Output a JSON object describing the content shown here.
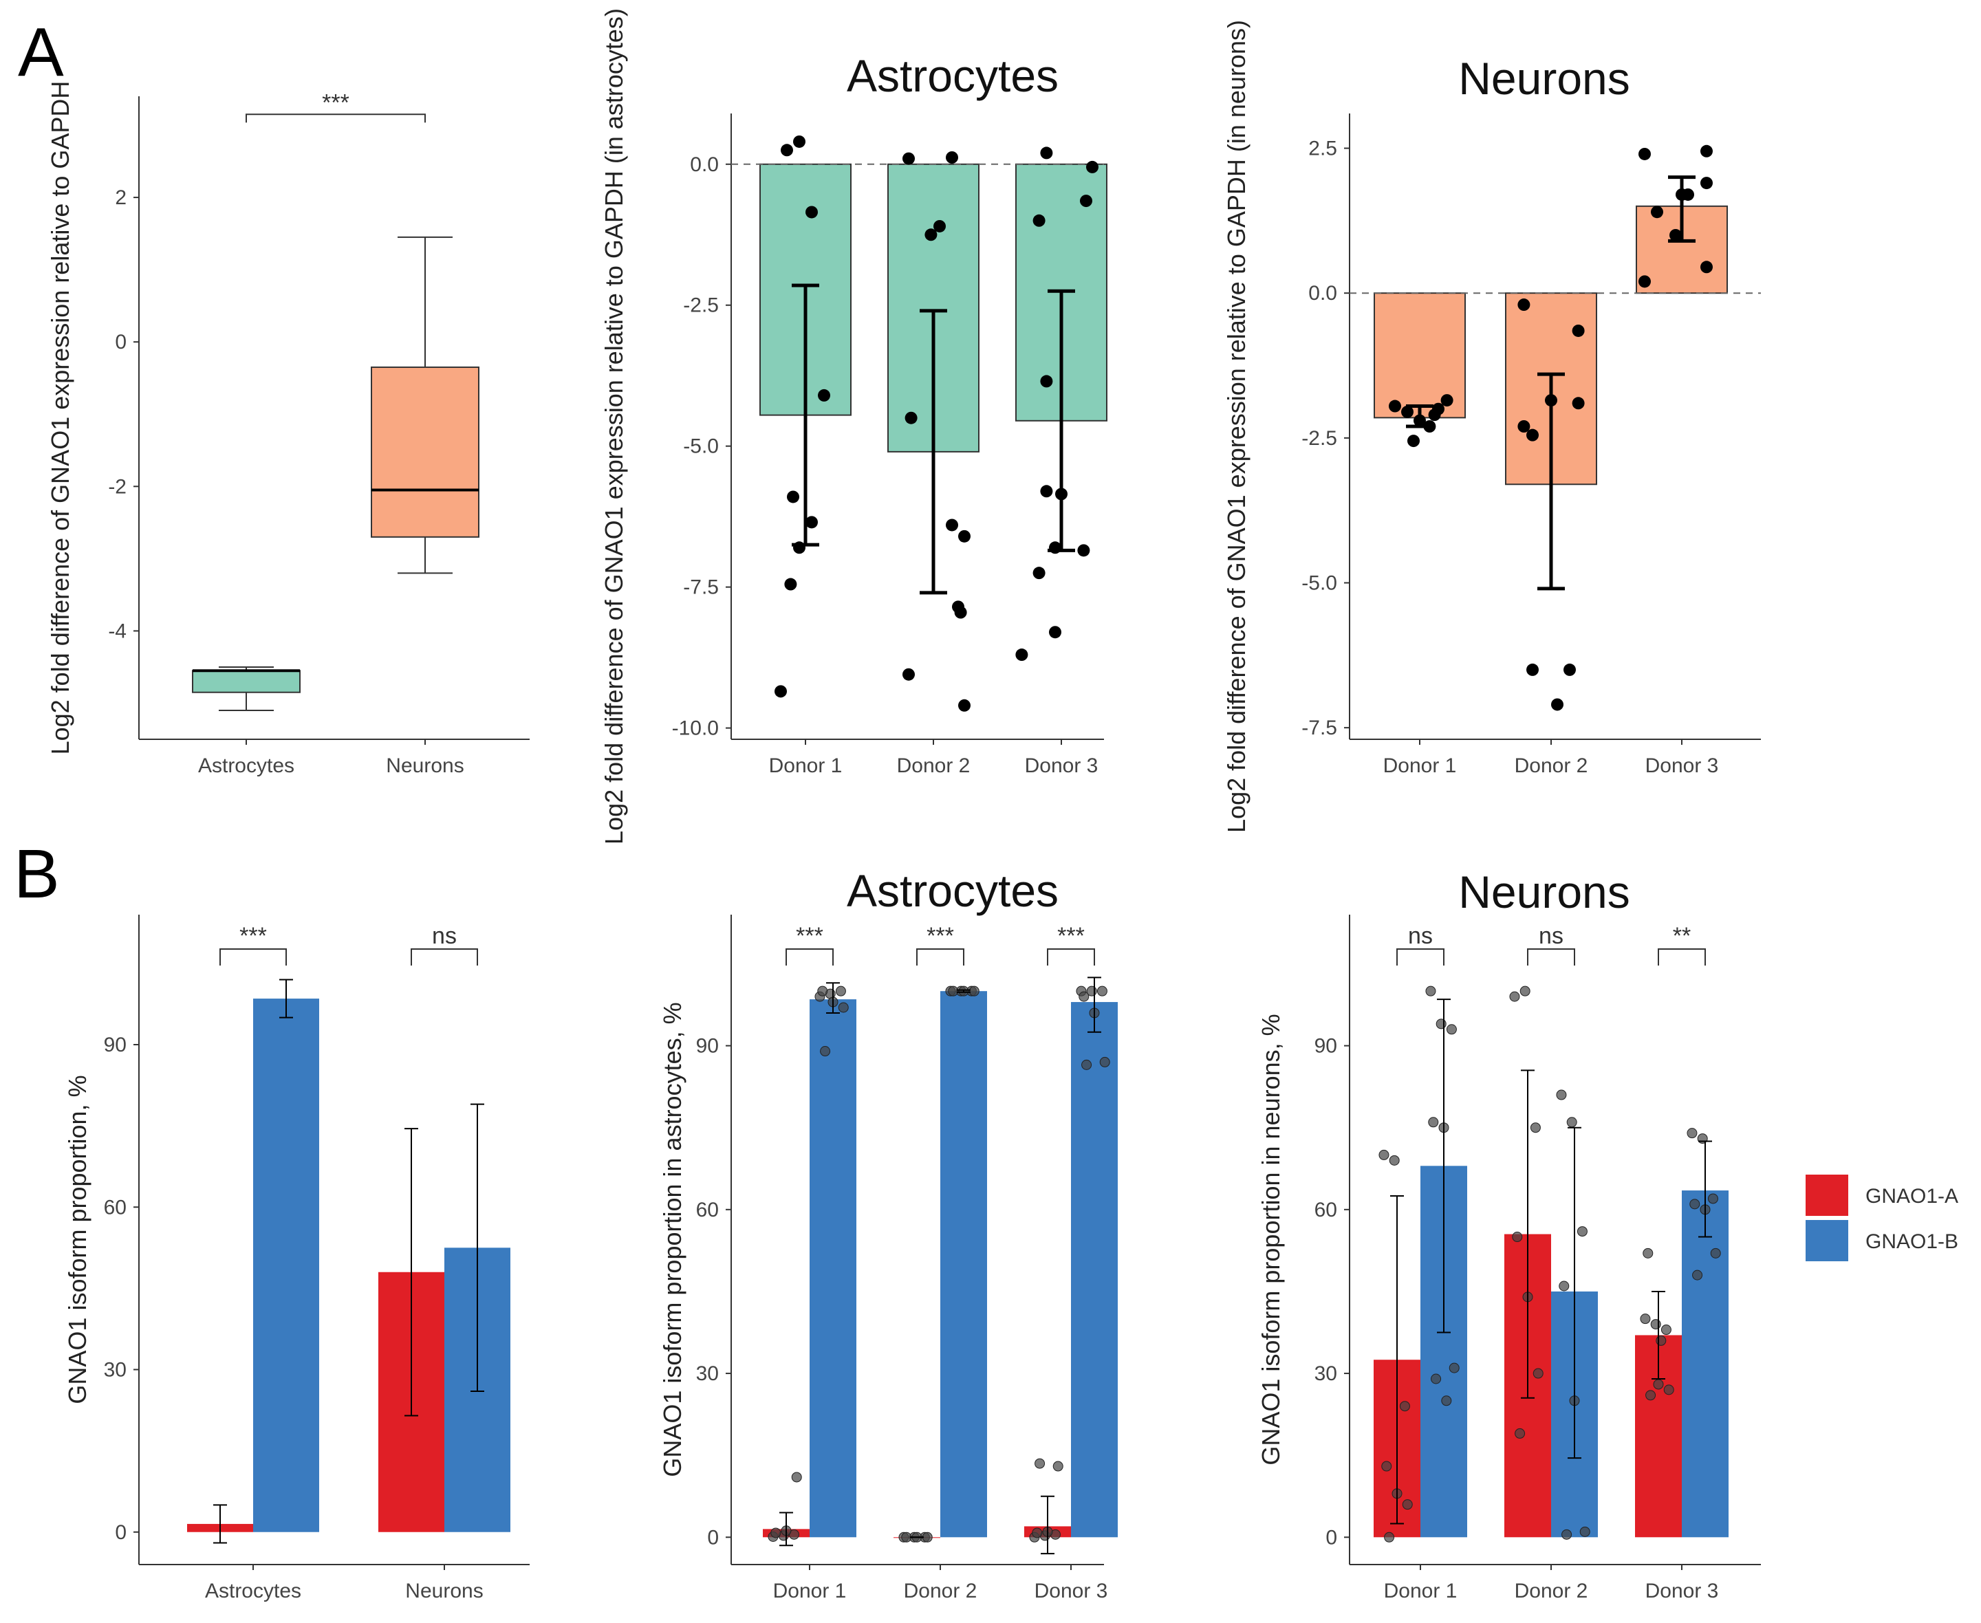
{
  "panel_labels": [
    "A",
    "B"
  ],
  "colors": {
    "astro_fill": "#87CEB8",
    "neuron_fill": "#F9A882",
    "gnao1_a": "#E01F26",
    "gnao1_b": "#3A7BBF",
    "axis": "#333333",
    "point": "#000000"
  },
  "chart_data": [
    {
      "id": "A1",
      "type": "box",
      "title": "",
      "ylabel": "Log2 fold difference of GNAO1 expression relative to GAPDH",
      "ylim": [
        -5.5,
        3.4
      ],
      "yticks": [
        2,
        0,
        -2,
        -4
      ],
      "ytick_labels": [
        "2",
        "0",
        "-2",
        "-4"
      ],
      "categories": [
        "Astrocytes",
        "Neurons"
      ],
      "boxes": [
        {
          "name": "Astrocytes",
          "whisker_low": -5.1,
          "q1": -4.85,
          "median": -4.55,
          "q3": -4.55,
          "whisker_high": -4.5
        },
        {
          "name": "Neurons",
          "whisker_low": -3.2,
          "q1": -2.7,
          "median": -2.05,
          "q3": -0.35,
          "whisker_high": 1.45
        }
      ],
      "significance": [
        {
          "between": [
            "Astrocytes",
            "Neurons"
          ],
          "label": "***",
          "y": 3.15
        }
      ]
    },
    {
      "id": "A2",
      "type": "bar",
      "title": "Astrocytes",
      "ylabel": "Log2 fold difference of GNAO1 expression relative to GAPDH  (in astrocytes)",
      "ylim": [
        -10.2,
        0.9
      ],
      "yticks": [
        0.0,
        -2.5,
        -5.0,
        -7.5,
        -10.0
      ],
      "ytick_labels": [
        "0.0",
        "-2.5",
        "-5.0",
        "-7.5",
        "-10.0"
      ],
      "reference_line": 0,
      "categories": [
        "Donor 1",
        "Donor 2",
        "Donor 3"
      ],
      "values": [
        -4.45,
        -5.1,
        -4.55
      ],
      "error_low": [
        -6.75,
        -7.6,
        -6.85
      ],
      "error_high": [
        -2.15,
        -2.6,
        -2.25
      ],
      "points": [
        [
          [
            -0.15,
            0.25
          ],
          [
            -0.05,
            0.4
          ],
          [
            0.05,
            -0.85
          ],
          [
            -0.1,
            -5.9
          ],
          [
            -0.05,
            -6.8
          ],
          [
            0.05,
            -6.35
          ],
          [
            0.15,
            -4.1
          ],
          [
            -0.12,
            -7.45
          ],
          [
            -0.2,
            -9.35
          ]
        ],
        [
          [
            -0.2,
            0.1
          ],
          [
            0.15,
            0.12
          ],
          [
            -0.02,
            -1.25
          ],
          [
            0.05,
            -1.1
          ],
          [
            -0.18,
            -4.5
          ],
          [
            0.15,
            -6.4
          ],
          [
            0.25,
            -6.6
          ],
          [
            0.2,
            -7.85
          ],
          [
            0.22,
            -7.95
          ],
          [
            -0.2,
            -9.05
          ],
          [
            0.25,
            -9.6
          ]
        ],
        [
          [
            -0.12,
            0.2
          ],
          [
            0.25,
            -0.05
          ],
          [
            0.2,
            -0.65
          ],
          [
            -0.18,
            -1.0
          ],
          [
            -0.12,
            -3.85
          ],
          [
            -0.12,
            -5.8
          ],
          [
            0.0,
            -5.85
          ],
          [
            -0.05,
            -6.8
          ],
          [
            0.18,
            -6.85
          ],
          [
            -0.18,
            -7.25
          ],
          [
            -0.05,
            -8.3
          ],
          [
            -0.32,
            -8.7
          ]
        ]
      ]
    },
    {
      "id": "A3",
      "type": "bar",
      "title": "Neurons",
      "ylabel": "Log2 fold difference of GNAO1 expression relative to GAPDH  (in neurons)",
      "ylim": [
        -7.7,
        3.1
      ],
      "yticks": [
        2.5,
        0.0,
        -2.5,
        -5.0,
        -7.5
      ],
      "ytick_labels": [
        "2.5",
        "0.0",
        "-2.5",
        "-5.0",
        "-7.5"
      ],
      "reference_line": 0,
      "categories": [
        "Donor 1",
        "Donor 2",
        "Donor 3"
      ],
      "values": [
        -2.15,
        -3.3,
        1.5
      ],
      "error_low": [
        -2.3,
        -5.1,
        0.9
      ],
      "error_high": [
        -1.95,
        -1.4,
        2.0
      ],
      "points": [
        [
          [
            -0.2,
            -1.95
          ],
          [
            -0.1,
            -2.05
          ],
          [
            0.0,
            -2.2
          ],
          [
            0.08,
            -2.3
          ],
          [
            0.15,
            -2.0
          ],
          [
            0.22,
            -1.85
          ],
          [
            -0.05,
            -2.55
          ],
          [
            0.12,
            -2.1
          ]
        ],
        [
          [
            -0.22,
            -0.2
          ],
          [
            0.22,
            -0.65
          ],
          [
            -0.22,
            -2.3
          ],
          [
            -0.15,
            -2.45
          ],
          [
            0.0,
            -1.85
          ],
          [
            0.22,
            -1.9
          ],
          [
            0.15,
            -6.5
          ],
          [
            -0.15,
            -6.5
          ],
          [
            0.05,
            -7.1
          ]
        ],
        [
          [
            -0.3,
            2.4
          ],
          [
            -0.2,
            1.4
          ],
          [
            -0.05,
            1.0
          ],
          [
            0.0,
            1.7
          ],
          [
            0.05,
            1.7
          ],
          [
            0.2,
            1.9
          ],
          [
            0.2,
            2.45
          ],
          [
            0.2,
            0.45
          ],
          [
            -0.3,
            0.2
          ]
        ]
      ]
    },
    {
      "id": "B1",
      "type": "grouped_bar",
      "title": "",
      "ylabel": "GNAO1 isoform proportion, %",
      "ylim": [
        -6,
        114
      ],
      "yticks": [
        0,
        30,
        60,
        90
      ],
      "ytick_labels": [
        "0",
        "30",
        "60",
        "90"
      ],
      "categories": [
        "Astrocytes",
        "Neurons"
      ],
      "series": [
        {
          "name": "GNAO1-A",
          "values": [
            1.5,
            48
          ],
          "error_low": [
            -2,
            21.5
          ],
          "error_high": [
            5,
            74.5
          ]
        },
        {
          "name": "GNAO1-B",
          "values": [
            98.5,
            52.5
          ],
          "error_low": [
            95,
            26
          ],
          "error_high": [
            102,
            79
          ]
        }
      ],
      "significance": [
        "***",
        "ns"
      ]
    },
    {
      "id": "B2",
      "type": "grouped_bar",
      "title": "Astrocytes",
      "ylabel": "GNAO1 isoform proportion in astrocytes, %",
      "ylim": [
        -5,
        114
      ],
      "yticks": [
        0,
        30,
        60,
        90
      ],
      "ytick_labels": [
        "0",
        "30",
        "60",
        "90"
      ],
      "categories": [
        "Donor 1",
        "Donor 2",
        "Donor 3"
      ],
      "series": [
        {
          "name": "GNAO1-A",
          "values": [
            1.5,
            0,
            2
          ],
          "error_low": [
            -1.5,
            0,
            -3
          ],
          "error_high": [
            4.5,
            0,
            7.5
          ],
          "points": [
            [
              0.1,
              0.3,
              0.5,
              0.8,
              1.2,
              11
            ],
            [
              0,
              0,
              0,
              0,
              0,
              0
            ],
            [
              0,
              0.3,
              0.5,
              0.8,
              1,
              13,
              13.5
            ]
          ]
        },
        {
          "name": "GNAO1-B",
          "values": [
            98.5,
            100,
            98
          ],
          "error_low": [
            96,
            99.8,
            92.5
          ],
          "error_high": [
            101.5,
            100.2,
            102.5
          ],
          "points": [
            [
              99,
              99.5,
              100,
              100,
              98,
              97,
              89
            ],
            [
              100,
              100,
              100,
              100,
              100,
              100
            ],
            [
              100,
              100,
              100,
              99,
              96,
              87,
              86.5
            ]
          ]
        }
      ],
      "significance": [
        "***",
        "***",
        "***"
      ]
    },
    {
      "id": "B3",
      "type": "grouped_bar",
      "title": "Neurons",
      "ylabel": "GNAO1 isoform proportion in neurons, %",
      "ylim": [
        -5,
        114
      ],
      "yticks": [
        0,
        30,
        60,
        90
      ],
      "ytick_labels": [
        "0",
        "30",
        "60",
        "90"
      ],
      "categories": [
        "Donor 1",
        "Donor 2",
        "Donor 3"
      ],
      "series": [
        {
          "name": "GNAO1-A",
          "values": [
            32.5,
            55.5,
            37
          ],
          "error_low": [
            2.5,
            25.5,
            29
          ],
          "error_high": [
            62.5,
            85.5,
            45
          ],
          "points": [
            [
              70,
              69,
              24,
              13,
              8,
              6,
              0
            ],
            [
              99,
              100,
              75,
              55,
              44,
              30,
              19
            ],
            [
              40,
              39,
              38,
              52,
              28,
              27,
              26,
              36
            ]
          ]
        },
        {
          "name": "GNAO1-B",
          "values": [
            68,
            45,
            63.5
          ],
          "error_low": [
            37.5,
            14.5,
            55
          ],
          "error_high": [
            98.5,
            75,
            72.5
          ],
          "points": [
            [
              100,
              94,
              93,
              76,
              75,
              31,
              29,
              25
            ],
            [
              81,
              76,
              56,
              46,
              25,
              1,
              0.5
            ],
            [
              74,
              73,
              62,
              61,
              60,
              52,
              48
            ]
          ]
        }
      ],
      "significance": [
        "ns",
        "ns",
        "**"
      ],
      "legend": {
        "position": "right",
        "entries": [
          "GNAO1-A",
          "GNAO1-B"
        ]
      }
    }
  ]
}
